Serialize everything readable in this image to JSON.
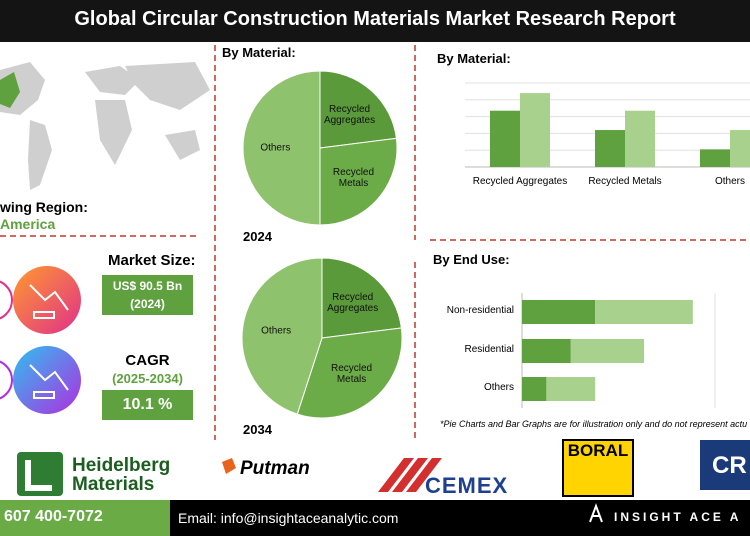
{
  "header": {
    "title": "Global Circular Construction Materials Market Research Report"
  },
  "region": {
    "label": "wing Region:",
    "value": "America"
  },
  "market_size": {
    "label": "Market Size:",
    "value": "US$ 90.5 Bn",
    "year": "(2024)"
  },
  "cagr": {
    "label": "CAGR",
    "period": "(2025-2034)",
    "value": "10.1 %"
  },
  "chart_data": [
    {
      "type": "pie",
      "title": "By Material:",
      "subtitle": "2024",
      "categories": [
        "Recycled Aggregates",
        "Recycled Metals",
        "Others"
      ],
      "values": [
        23,
        27,
        50
      ],
      "colors": [
        "#5a9a3a",
        "#6cac48",
        "#8fc26c"
      ]
    },
    {
      "type": "pie",
      "subtitle": "2034",
      "categories": [
        "Recycled Aggregates",
        "Recycled Metals",
        "Others"
      ],
      "values": [
        23,
        32,
        45
      ],
      "colors": [
        "#5a9a3a",
        "#6cac48",
        "#8fc26c"
      ]
    },
    {
      "type": "bar",
      "title": "By Material:",
      "categories": [
        "Recycled Aggregates",
        "Recycled Metals",
        "Others"
      ],
      "series": [
        {
          "color": "#5fa03f",
          "values": [
            67,
            44,
            21
          ]
        },
        {
          "color": "#a9d18e",
          "values": [
            88,
            67,
            44
          ]
        }
      ],
      "ylim": [
        0,
        100
      ],
      "grid": true
    },
    {
      "type": "hbar-stacked",
      "title": "By End Use:",
      "categories": [
        "Non-residential",
        "Residential",
        "Others"
      ],
      "series": [
        {
          "color": "#5fa03f",
          "values": [
            30,
            20,
            10
          ]
        },
        {
          "color": "#a9d18e",
          "values": [
            40,
            30,
            20
          ]
        }
      ],
      "xlim": [
        0,
        100
      ]
    }
  ],
  "note": "*Pie Charts and Bar Graphs are for illustration only and do not represent actu",
  "logos": {
    "heidelberg": [
      "Heidelberg",
      "Materials"
    ],
    "putman": "Putman",
    "cemex": "CEMEX",
    "boral": "BORAL",
    "cr": "CR"
  },
  "footer": {
    "phone": "607 400-7072",
    "email": "Email: info@insightaceanalytic.com",
    "brand": "INSIGHT ACE A"
  }
}
